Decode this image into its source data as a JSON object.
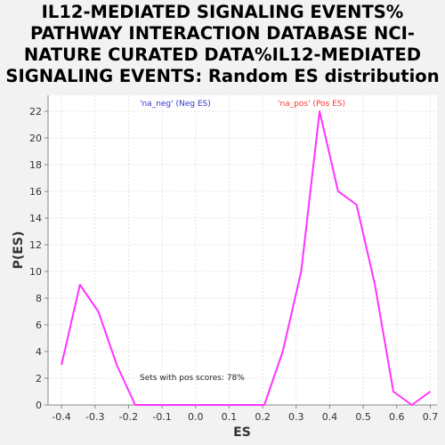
{
  "title_lines": [
    "IL12-MEDIATED SIGNALING EVENTS%",
    "PATHWAY INTERACTION DATABASE NCI-",
    "NATURE CURATED DATA%IL12-MEDIATED",
    "SIGNALING EVENTS: Random ES distribution"
  ],
  "colors": {
    "line": "#ff33ff",
    "neg_label": "#3333cc",
    "pos_label": "#ff3333",
    "plot_bg": "#ffffff",
    "grid": "#e4e4e4",
    "page_bg": "#f2f2f2"
  },
  "chart_data": {
    "type": "line",
    "title": "IL12-MEDIATED SIGNALING EVENTS% PATHWAY INTERACTION DATABASE NCI-NATURE CURATED DATA%IL12-MEDIATED SIGNALING EVENTS: Random ES distribution",
    "xlabel": "ES",
    "ylabel": "P(ES)",
    "xlim": [
      -0.44,
      0.72
    ],
    "ylim": [
      0,
      23.2
    ],
    "xticks": [
      -0.4,
      -0.3,
      -0.2,
      -0.1,
      0.0,
      0.1,
      0.2,
      0.3,
      0.4,
      0.5,
      0.6,
      0.7
    ],
    "xtick_labels": [
      "-0.4",
      "-0.3",
      "-0.2",
      "-0.1",
      "0.0",
      "0.1",
      "0.2",
      "0.3",
      "0.4",
      "0.5",
      "0.6",
      "0.7"
    ],
    "yticks": [
      0,
      2,
      4,
      6,
      8,
      10,
      12,
      14,
      16,
      18,
      20,
      22
    ],
    "ytick_labels": [
      "0",
      "2",
      "4",
      "6",
      "8",
      "10",
      "12",
      "14",
      "16",
      "18",
      "20",
      "22"
    ],
    "grid": true,
    "series": [
      {
        "x": [
          -0.4,
          -0.345,
          -0.29,
          -0.235,
          -0.18,
          -0.125,
          -0.07,
          -0.015,
          0.04,
          0.095,
          0.15,
          0.205,
          0.26,
          0.315,
          0.37,
          0.425,
          0.48,
          0.535,
          0.59,
          0.645,
          0.7
        ],
        "values": [
          3,
          9,
          7,
          3,
          0,
          0,
          0,
          0,
          0,
          0,
          0,
          0,
          4,
          10,
          22,
          16,
          15,
          9,
          1,
          0,
          1
        ]
      }
    ],
    "annotations": [
      {
        "text": "'na_neg' (Neg ES)",
        "color": "neg"
      },
      {
        "text": "'na_pos' (Pos ES)",
        "color": "pos"
      },
      {
        "text": "Sets with pos scores: 78%",
        "color": "text"
      }
    ]
  }
}
